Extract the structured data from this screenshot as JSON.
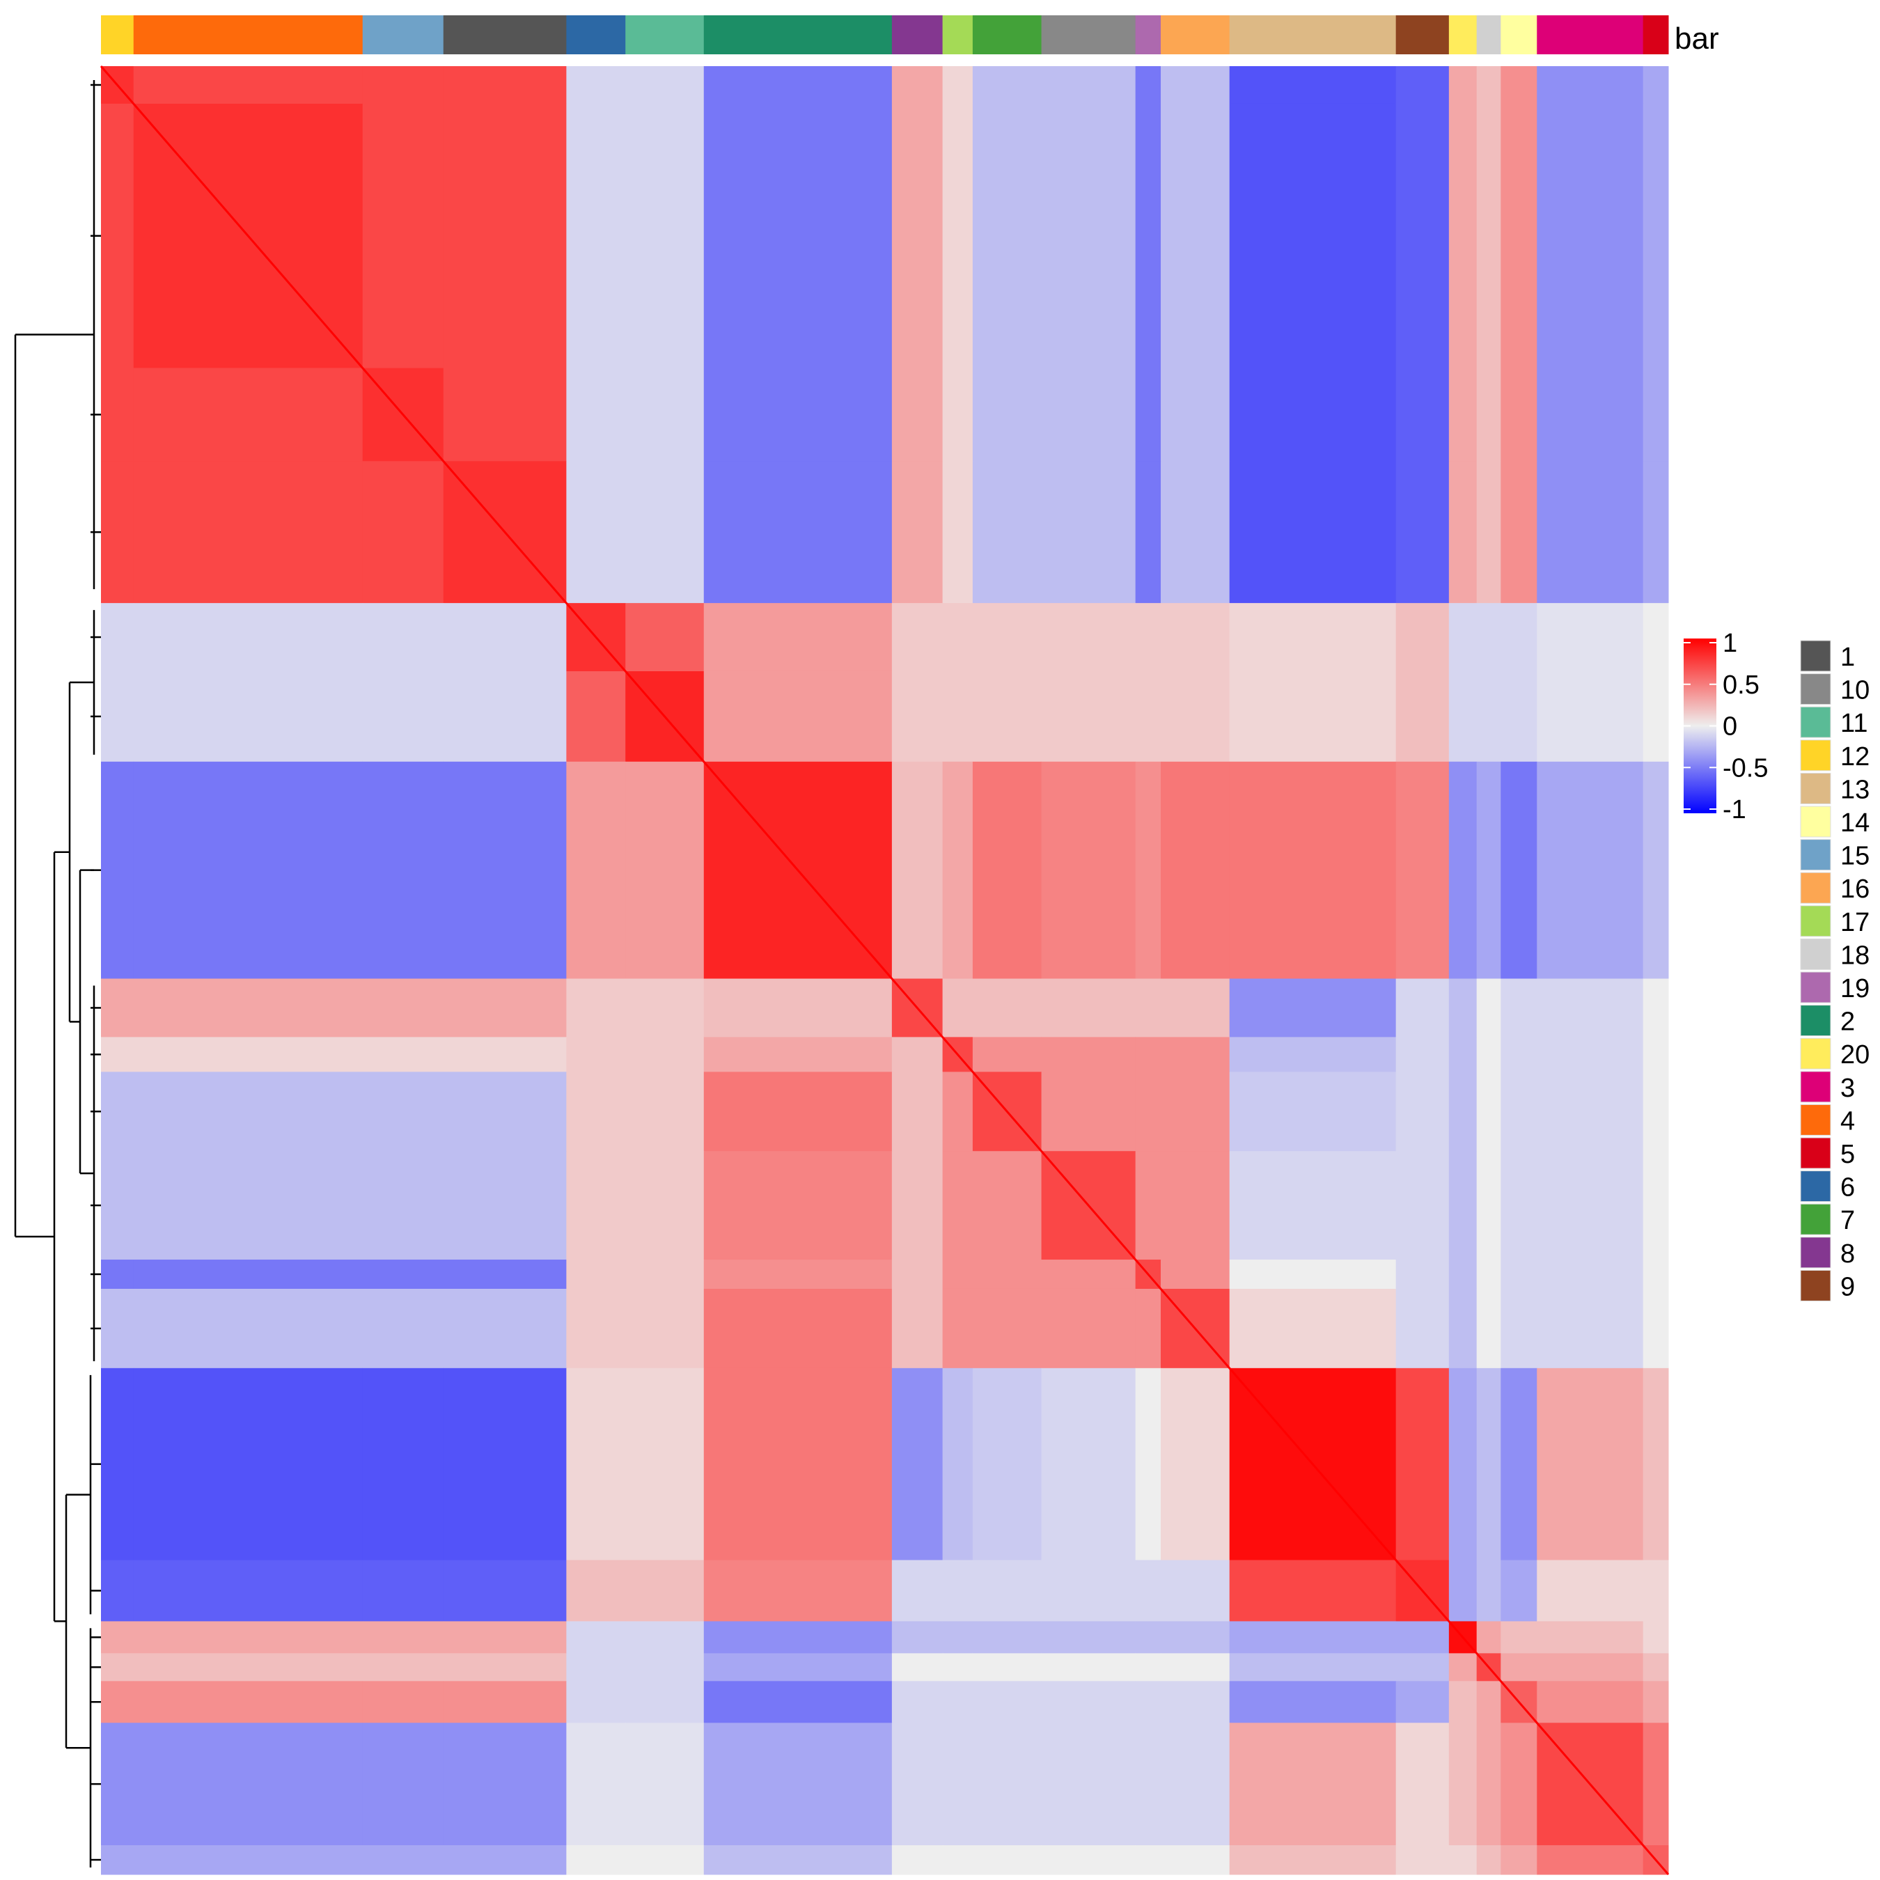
{
  "chart_data": {
    "type": "heatmap",
    "title": "",
    "annotation_name": "bar",
    "cluster_order": [
      "12",
      "4",
      "15",
      "1",
      "6",
      "11",
      "2",
      "8",
      "17",
      "7",
      "10",
      "19",
      "16",
      "13",
      "9",
      "20",
      "18",
      "14",
      "3",
      "5"
    ],
    "block_values_note_free": true,
    "block_matrix": [
      [
        0.8,
        0.7,
        0.7,
        0.7,
        -0.1,
        -0.1,
        -0.5,
        0.3,
        0.1,
        -0.2,
        -0.2,
        -0.5,
        -0.2,
        -0.65,
        -0.6,
        0.3,
        0.2,
        0.4,
        -0.4,
        -0.3
      ],
      [
        0.7,
        0.8,
        0.7,
        0.7,
        -0.1,
        -0.1,
        -0.5,
        0.3,
        0.1,
        -0.2,
        -0.2,
        -0.5,
        -0.2,
        -0.65,
        -0.6,
        0.3,
        0.2,
        0.4,
        -0.4,
        -0.3
      ],
      [
        0.7,
        0.7,
        0.8,
        0.7,
        -0.1,
        -0.1,
        -0.5,
        0.3,
        0.1,
        -0.2,
        -0.2,
        -0.5,
        -0.2,
        -0.65,
        -0.6,
        0.3,
        0.2,
        0.4,
        -0.4,
        -0.3
      ],
      [
        0.7,
        0.7,
        0.7,
        0.8,
        -0.1,
        -0.1,
        -0.5,
        0.3,
        0.1,
        -0.2,
        -0.2,
        -0.5,
        -0.2,
        -0.65,
        -0.6,
        0.3,
        0.2,
        0.4,
        -0.4,
        -0.3
      ],
      [
        -0.1,
        -0.1,
        -0.1,
        -0.1,
        0.8,
        0.6,
        0.35,
        0.15,
        0.15,
        0.15,
        0.15,
        0.15,
        0.15,
        0.1,
        0.2,
        -0.1,
        -0.1,
        -0.1,
        -0.05,
        0
      ],
      [
        -0.1,
        -0.1,
        -0.1,
        -0.1,
        0.6,
        0.85,
        0.35,
        0.15,
        0.15,
        0.15,
        0.15,
        0.15,
        0.15,
        0.1,
        0.2,
        -0.1,
        -0.1,
        -0.1,
        -0.05,
        0
      ],
      [
        -0.5,
        -0.5,
        -0.5,
        -0.5,
        0.35,
        0.35,
        0.85,
        0.2,
        0.3,
        0.5,
        0.45,
        0.4,
        0.5,
        0.5,
        0.45,
        -0.4,
        -0.3,
        -0.5,
        -0.3,
        -0.2
      ],
      [
        0.3,
        0.3,
        0.3,
        0.3,
        0.15,
        0.15,
        0.2,
        0.7,
        0.2,
        0.2,
        0.2,
        0.2,
        0.2,
        -0.4,
        -0.1,
        -0.2,
        0,
        -0.1,
        -0.1,
        0
      ],
      [
        0.1,
        0.1,
        0.1,
        0.1,
        0.15,
        0.15,
        0.3,
        0.2,
        0.7,
        0.4,
        0.4,
        0.4,
        0.4,
        -0.2,
        -0.1,
        -0.2,
        0,
        -0.1,
        -0.1,
        0
      ],
      [
        -0.2,
        -0.2,
        -0.2,
        -0.2,
        0.15,
        0.15,
        0.5,
        0.2,
        0.4,
        0.7,
        0.4,
        0.4,
        0.4,
        -0.15,
        -0.1,
        -0.2,
        0,
        -0.1,
        -0.1,
        0
      ],
      [
        -0.2,
        -0.2,
        -0.2,
        -0.2,
        0.15,
        0.15,
        0.45,
        0.2,
        0.4,
        0.4,
        0.7,
        0.4,
        0.4,
        -0.1,
        -0.1,
        -0.2,
        0,
        -0.1,
        -0.1,
        0
      ],
      [
        -0.5,
        -0.5,
        -0.5,
        -0.5,
        0.15,
        0.15,
        0.4,
        0.2,
        0.4,
        0.4,
        0.4,
        0.7,
        0.4,
        0,
        -0.1,
        -0.2,
        0,
        -0.1,
        -0.1,
        0
      ],
      [
        -0.2,
        -0.2,
        -0.2,
        -0.2,
        0.15,
        0.15,
        0.5,
        0.2,
        0.4,
        0.4,
        0.4,
        0.4,
        0.7,
        0.1,
        -0.1,
        -0.2,
        0,
        -0.1,
        -0.1,
        0
      ],
      [
        -0.65,
        -0.65,
        -0.65,
        -0.65,
        0.1,
        0.1,
        0.5,
        -0.4,
        -0.2,
        -0.15,
        -0.1,
        0,
        0.1,
        0.95,
        0.7,
        -0.3,
        -0.2,
        -0.4,
        0.3,
        0.2
      ],
      [
        -0.6,
        -0.6,
        -0.6,
        -0.6,
        0.2,
        0.2,
        0.45,
        -0.1,
        -0.1,
        -0.1,
        -0.1,
        -0.1,
        -0.1,
        0.7,
        0.8,
        -0.3,
        -0.2,
        -0.3,
        0.1,
        0.1
      ],
      [
        0.3,
        0.3,
        0.3,
        0.3,
        -0.1,
        -0.1,
        -0.4,
        -0.2,
        -0.2,
        -0.2,
        -0.2,
        -0.2,
        -0.2,
        -0.3,
        -0.3,
        0.95,
        0.3,
        0.2,
        0.2,
        0.1
      ],
      [
        0.2,
        0.2,
        0.2,
        0.2,
        -0.1,
        -0.1,
        -0.3,
        0,
        0,
        0,
        0,
        0,
        0,
        -0.2,
        -0.2,
        0.3,
        0.7,
        0.3,
        0.3,
        0.2
      ],
      [
        0.4,
        0.4,
        0.4,
        0.4,
        -0.1,
        -0.1,
        -0.5,
        -0.1,
        -0.1,
        -0.1,
        -0.1,
        -0.1,
        -0.1,
        -0.4,
        -0.3,
        0.2,
        0.3,
        0.6,
        0.4,
        0.3
      ],
      [
        -0.4,
        -0.4,
        -0.4,
        -0.4,
        -0.05,
        -0.05,
        -0.3,
        -0.1,
        -0.1,
        -0.1,
        -0.1,
        -0.1,
        -0.1,
        0.3,
        0.1,
        0.2,
        0.3,
        0.4,
        0.7,
        0.5
      ],
      [
        -0.3,
        -0.3,
        -0.3,
        -0.3,
        0,
        0,
        -0.2,
        0,
        0,
        0,
        0,
        0,
        0,
        0.2,
        0.1,
        0.1,
        0.2,
        0.3,
        0.5,
        0.6
      ]
    ],
    "color_scale": {
      "range": [
        -1,
        1
      ],
      "low": "#0000FF",
      "mid": "#EEEEEE",
      "high": "#FF0000",
      "ticks": [
        "1",
        "0.5",
        "0",
        "-0.5",
        "-1"
      ]
    },
    "dendrogram": "rows, left",
    "legend_placement": "right",
    "cluster_legend": [
      {
        "label": "1",
        "color": "#555555"
      },
      {
        "label": "10",
        "color": "#888888"
      },
      {
        "label": "11",
        "color": "#5ABB96"
      },
      {
        "label": "12",
        "color": "#FFD427"
      },
      {
        "label": "13",
        "color": "#DDB985"
      },
      {
        "label": "14",
        "color": "#FFFF9F"
      },
      {
        "label": "15",
        "color": "#6FA2C8"
      },
      {
        "label": "16",
        "color": "#FCA652"
      },
      {
        "label": "17",
        "color": "#A4DA56"
      },
      {
        "label": "18",
        "color": "#D0D0D0"
      },
      {
        "label": "19",
        "color": "#AD69AE"
      },
      {
        "label": "2",
        "color": "#1C8E66"
      },
      {
        "label": "20",
        "color": "#FFEC5C"
      },
      {
        "label": "3",
        "color": "#DD0077"
      },
      {
        "label": "4",
        "color": "#FE6A0B"
      },
      {
        "label": "5",
        "color": "#D90018"
      },
      {
        "label": "6",
        "color": "#2C68A5"
      },
      {
        "label": "7",
        "color": "#43A239"
      },
      {
        "label": "8",
        "color": "#843790"
      },
      {
        "label": "9",
        "color": "#8E4320"
      }
    ]
  }
}
